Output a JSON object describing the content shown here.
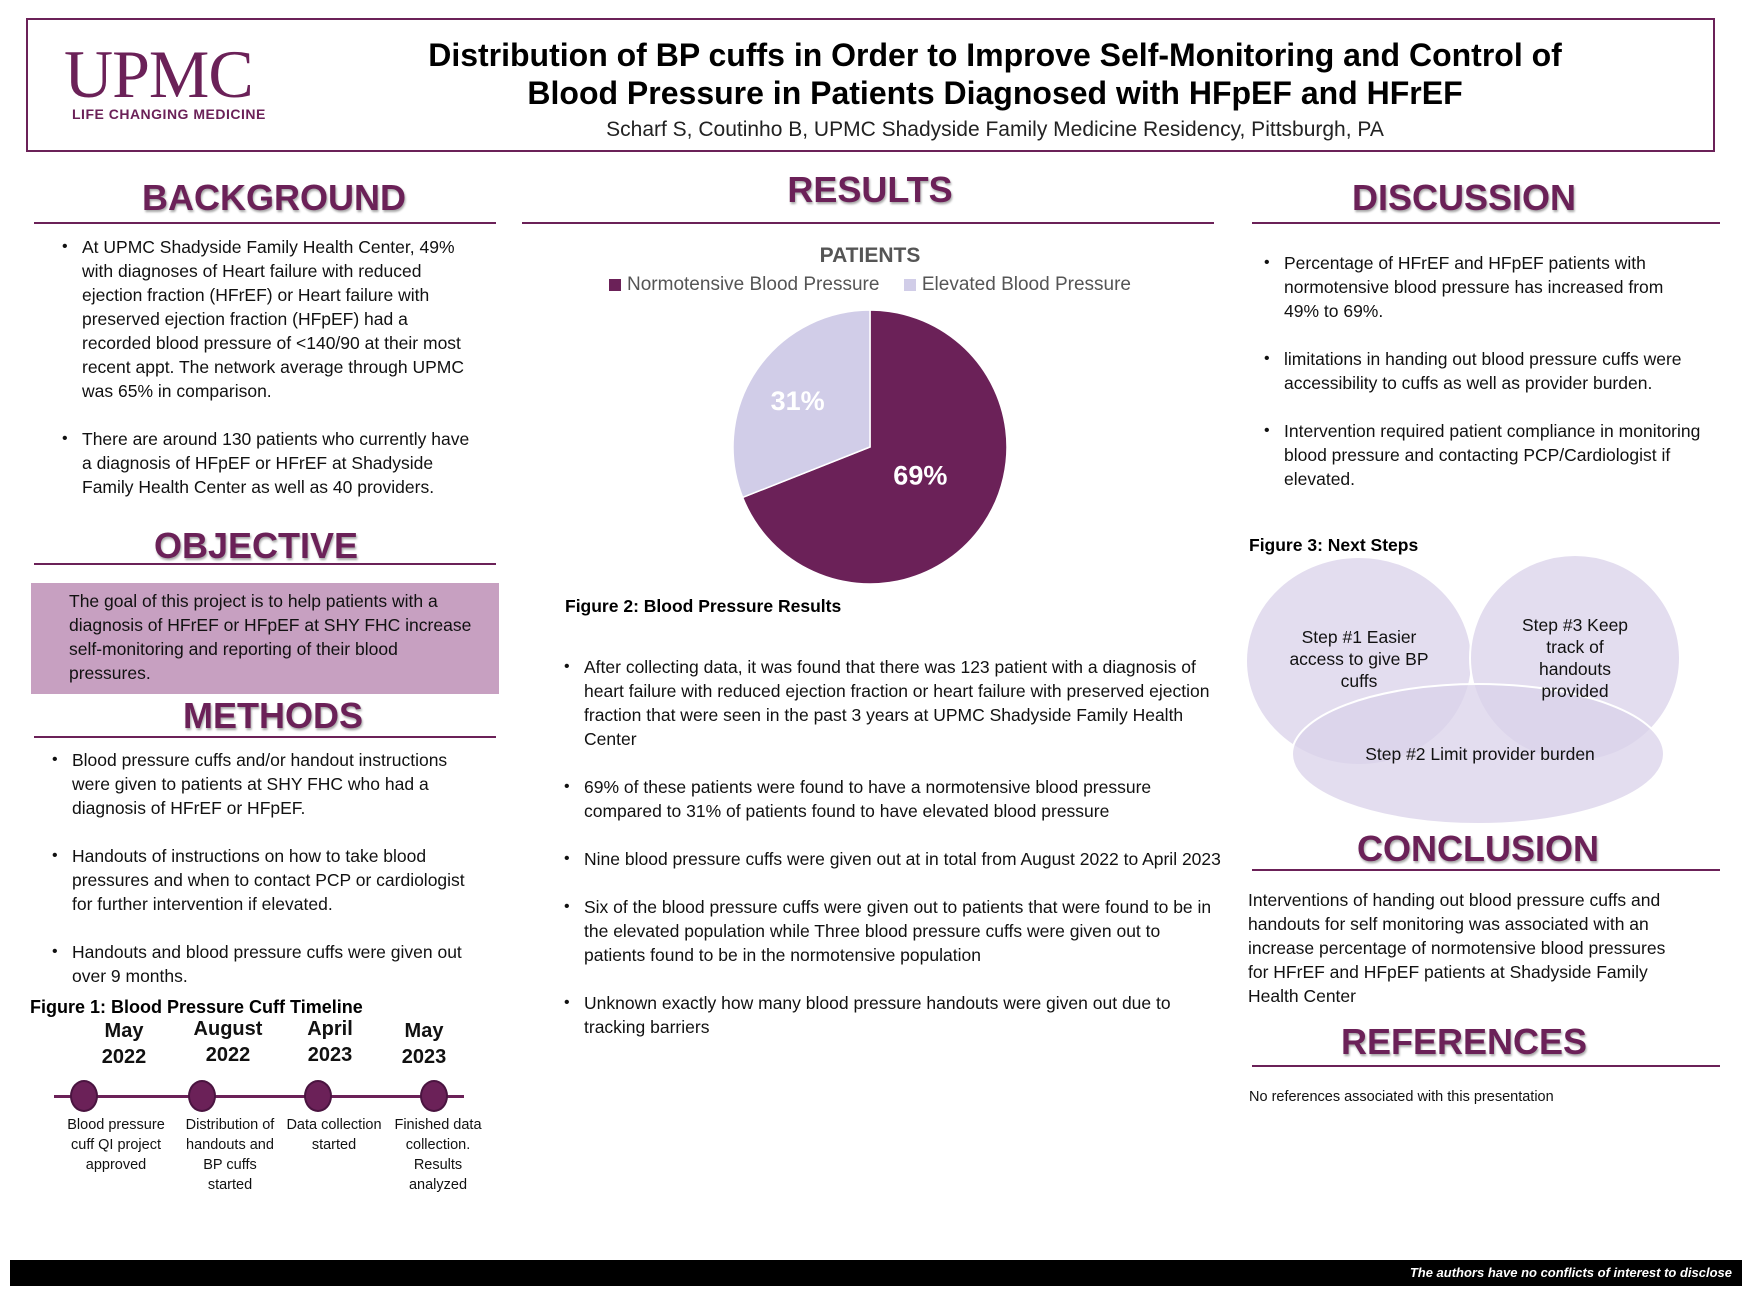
{
  "header": {
    "logo_text": "UPMC",
    "logo_tagline": "LIFE CHANGING MEDICINE",
    "title_line1": "Distribution of BP cuffs in Order to Improve Self-Monitoring and Control of",
    "title_line2": "Blood Pressure in Patients Diagnosed with HFpEF and HFrEF",
    "authors": "Scharf S, Coutinho B, UPMC Shadyside Family Medicine Residency, Pittsburgh, PA"
  },
  "background": {
    "heading": "BACKGROUND",
    "bullets": [
      "At UPMC Shadyside Family Health Center, 49% with diagnoses of Heart failure with reduced ejection fraction (HFrEF) or Heart failure with preserved ejection fraction (HFpEF) had a recorded blood pressure of <140/90 at their most recent appt. The network average through UPMC was 65% in comparison.",
      "There are around 130 patients who currently have a diagnosis of HFpEF or HFrEF at Shadyside Family Health Center as well as 40 providers."
    ]
  },
  "objective": {
    "heading": "OBJECTIVE",
    "text": "The goal of this project is to help patients with a diagnosis of HFrEF or HFpEF at SHY FHC increase self-monitoring and reporting of their blood pressures."
  },
  "methods": {
    "heading": "METHODS",
    "bullets": [
      "Blood pressure cuffs and/or handout instructions were given to patients at SHY FHC who had a diagnosis of HFrEF or HFpEF.",
      "Handouts of instructions on how to take blood pressures and when to contact PCP or cardiologist for further intervention if elevated.",
      "Handouts and blood pressure cuffs were given out over 9 months."
    ]
  },
  "timeline": {
    "caption": "Figure 1: Blood Pressure Cuff Timeline",
    "events": [
      {
        "date_line1": "May",
        "date_line2": "2022",
        "desc": "Blood pressure cuff QI project approved"
      },
      {
        "date_line1": "August",
        "date_line2": "2022",
        "desc": "Distribution of handouts and BP cuffs started"
      },
      {
        "date_line1": "April",
        "date_line2": "2023",
        "desc": "Data collection started"
      },
      {
        "date_line1": "May",
        "date_line2": "2023",
        "desc": "Finished data collection. Results analyzed"
      }
    ]
  },
  "results": {
    "heading": "RESULTS",
    "figure_caption": "Figure 2: Blood Pressure Results",
    "bullets": [
      "After collecting data, it was found that there was 123 patient with a diagnosis of heart failure with reduced ejection fraction or heart failure with preserved ejection fraction that were seen in the past 3 years at UPMC Shadyside Family Health Center",
      "69% of these patients were found to have a normotensive blood pressure compared to 31% of patients found to have elevated blood pressure",
      "Nine blood pressure cuffs were given out at in total from August 2022 to April 2023",
      "Six of the blood pressure cuffs were given out to patients that were found to be in the elevated population while Three blood pressure cuffs were given out to patients found to be in the normotensive population",
      "Unknown exactly how many blood pressure handouts were given out due to tracking barriers"
    ]
  },
  "chart_data": {
    "type": "pie",
    "title": "PATIENTS",
    "categories": [
      "Normotensive Blood Pressure",
      "Elevated Blood Pressure"
    ],
    "values": [
      69,
      31
    ],
    "data_labels": [
      "69%",
      "31%"
    ],
    "colors": [
      "#6b2158",
      "#d1cde8"
    ],
    "legend_position": "top"
  },
  "discussion": {
    "heading": "DISCUSSION",
    "bullets": [
      "Percentage of HFrEF and HFpEF patients with normotensive blood pressure has increased from 49% to 69%.",
      "limitations in handing out blood pressure cuffs were accessibility to cuffs as well as provider burden.",
      "Intervention required patient compliance in monitoring blood pressure and contacting PCP/Cardiologist if elevated."
    ]
  },
  "next_steps": {
    "caption": "Figure 3: Next Steps",
    "step1": "Step #1 Easier access to give BP cuffs",
    "step2": "Step #2 Limit provider burden",
    "step3": "Step #3 Keep track of handouts provided"
  },
  "conclusion": {
    "heading": "CONCLUSION",
    "text": "Interventions of handing out blood pressure cuffs and handouts for self monitoring was associated with an increase percentage of normotensive blood pressures for HFrEF and HFpEF patients at Shadyside Family Health Center"
  },
  "references": {
    "heading": "REFERENCES",
    "text": "No references associated with this presentation"
  },
  "footer": {
    "text": "The authors have no conflicts of interest to disclose"
  },
  "colors": {
    "brand_purple": "#6b2158",
    "objective_fill": "#c7a0c1",
    "venn_fill": "#d9d2ea"
  }
}
